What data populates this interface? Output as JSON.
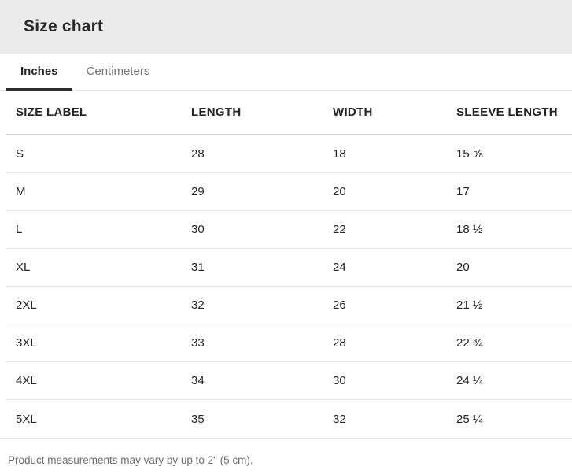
{
  "header": {
    "title": "Size chart"
  },
  "tabs": [
    {
      "label": "Inches",
      "active": true
    },
    {
      "label": "Centimeters",
      "active": false
    }
  ],
  "table": {
    "columns": [
      "SIZE LABEL",
      "LENGTH",
      "WIDTH",
      "SLEEVE LENGTH"
    ],
    "rows": [
      [
        "S",
        "28",
        "18",
        "15 ⅝"
      ],
      [
        "M",
        "29",
        "20",
        "17"
      ],
      [
        "L",
        "30",
        "22",
        "18 ½"
      ],
      [
        "XL",
        "31",
        "24",
        "20"
      ],
      [
        "2XL",
        "32",
        "26",
        "21 ½"
      ],
      [
        "3XL",
        "33",
        "28",
        "22 ¾"
      ],
      [
        "4XL",
        "34",
        "30",
        "24 ¼"
      ],
      [
        "5XL",
        "35",
        "32",
        "25 ¼"
      ]
    ]
  },
  "footer": {
    "note": "Product measurements may vary by up to 2\" (5 cm)."
  },
  "colors": {
    "header_bg": "#ebebeb",
    "text_primary": "#222426",
    "text_secondary": "#75787c",
    "active_tab_underline": "#2e2e2e",
    "header_divider": "#d6d6d6",
    "row_divider": "#e7e7e7"
  }
}
